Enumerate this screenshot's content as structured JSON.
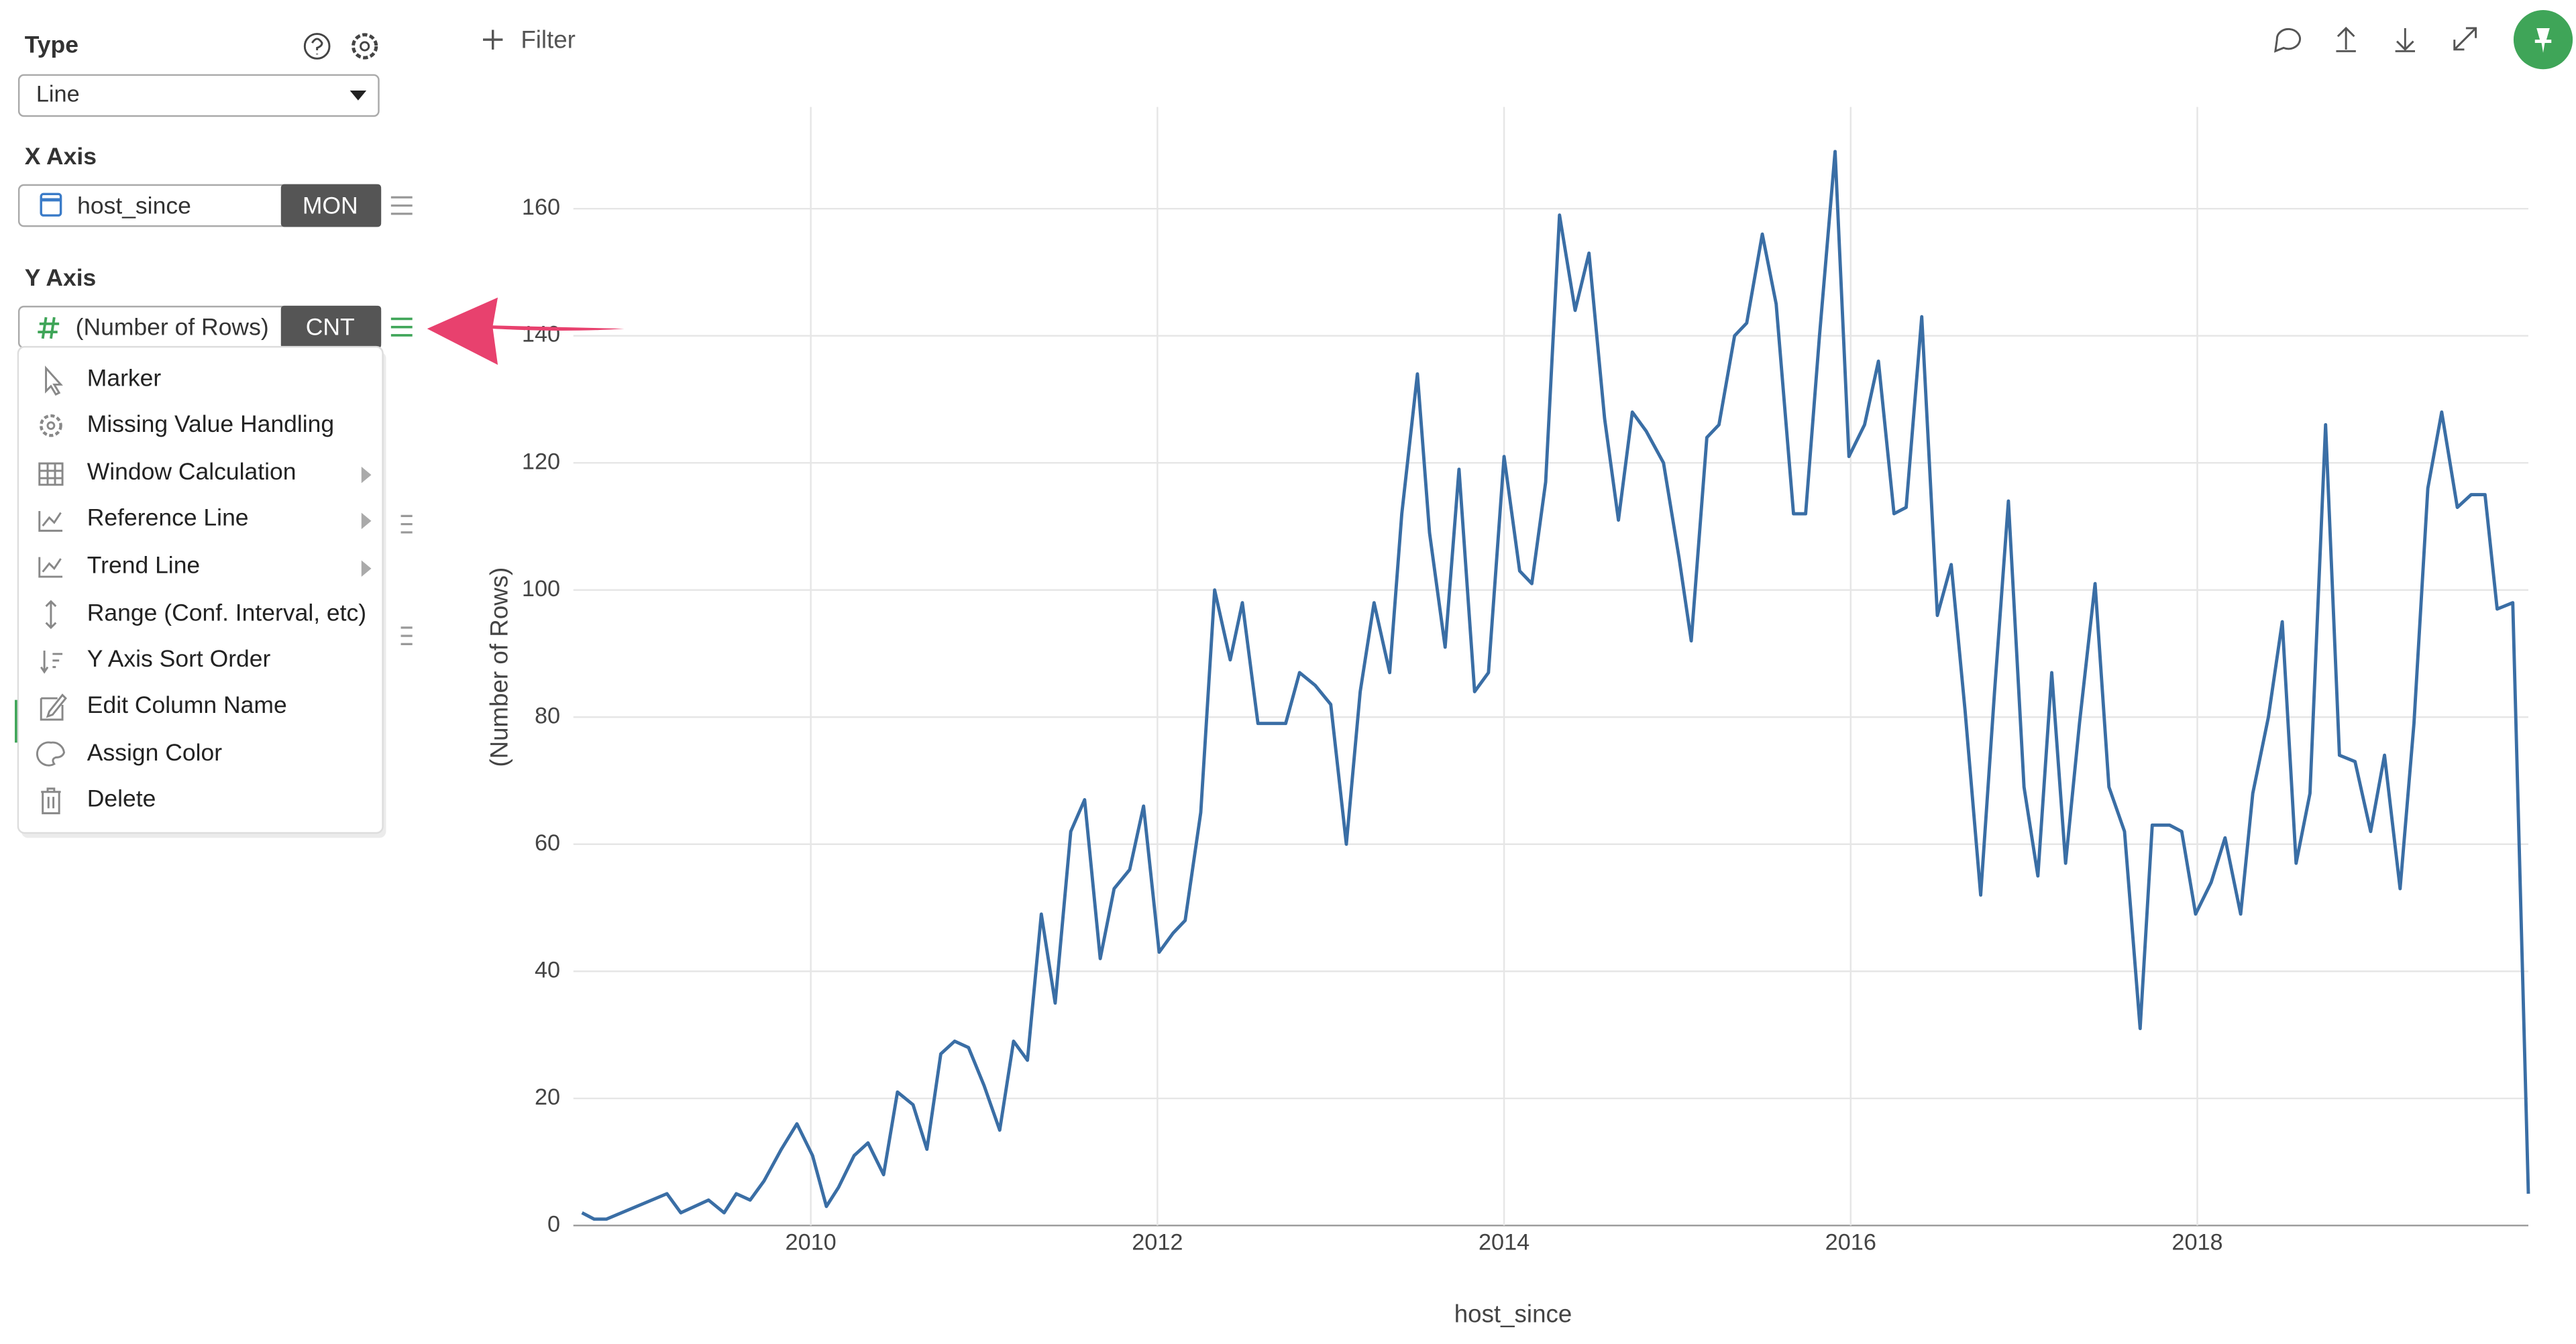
{
  "toolbar": {
    "filter": "Filter"
  },
  "sidebar": {
    "type_label": "Type",
    "type_value": "Line",
    "x_axis_label": "X Axis",
    "x_field": "host_since",
    "x_agg": "MON",
    "y_axis_label": "Y Axis",
    "y_field": "(Number of Rows)",
    "y_agg": "CNT"
  },
  "menu": {
    "items": [
      "Marker",
      "Missing Value Handling",
      "Window Calculation",
      "Reference Line",
      "Trend Line",
      "Range (Conf. Interval, etc)",
      "Y Axis Sort Order",
      "Edit Column Name",
      "Assign Color",
      "Delete"
    ]
  },
  "chart_data": {
    "type": "line",
    "x_label": "host_since",
    "y_label": "(Number of Rows)",
    "x": [
      2008.68,
      2008.75,
      2008.82,
      2009.17,
      2009.25,
      2009.41,
      2009.5,
      2009.57,
      2009.65,
      2009.73,
      2009.83,
      2009.92,
      2010.01,
      2010.09,
      2010.16,
      2010.25,
      2010.33,
      2010.42,
      2010.5,
      2010.59,
      2010.67,
      2010.75,
      2010.83,
      2010.91,
      2011.0,
      2011.09,
      2011.17,
      2011.25,
      2011.33,
      2011.41,
      2011.5,
      2011.58,
      2011.67,
      2011.75,
      2011.84,
      2011.92,
      2012.01,
      2012.09,
      2012.16,
      2012.25,
      2012.33,
      2012.42,
      2012.49,
      2012.58,
      2012.66,
      2012.74,
      2012.82,
      2012.91,
      2013.0,
      2013.09,
      2013.17,
      2013.25,
      2013.34,
      2013.41,
      2013.5,
      2013.57,
      2013.66,
      2013.74,
      2013.83,
      2013.91,
      2014.0,
      2014.09,
      2014.16,
      2014.24,
      2014.32,
      2014.41,
      2014.49,
      2014.58,
      2014.66,
      2014.74,
      2014.82,
      2014.92,
      2015.01,
      2015.08,
      2015.17,
      2015.24,
      2015.33,
      2015.4,
      2015.49,
      2015.57,
      2015.67,
      2015.74,
      2015.82,
      2015.91,
      2015.99,
      2016.08,
      2016.16,
      2016.25,
      2016.32,
      2016.41,
      2016.5,
      2016.58,
      2016.66,
      2016.75,
      2016.83,
      2016.91,
      2017.0,
      2017.08,
      2017.16,
      2017.24,
      2017.32,
      2017.41,
      2017.49,
      2017.58,
      2017.67,
      2017.74,
      2017.84,
      2017.91,
      2017.99,
      2018.08,
      2018.16,
      2018.25,
      2018.32,
      2018.41,
      2018.49,
      2018.57,
      2018.65,
      2018.74,
      2018.82,
      2018.91,
      2019.0,
      2019.08,
      2019.17,
      2019.25,
      2019.33,
      2019.41,
      2019.5,
      2019.58,
      2019.66,
      2019.73,
      2019.82,
      2019.91
    ],
    "series": [
      {
        "color": "#3a6ea5",
        "values": [
          2,
          1,
          1,
          5,
          2,
          4,
          2,
          5,
          4,
          7,
          12,
          16,
          11,
          3,
          6,
          11,
          13,
          8,
          21,
          19,
          12,
          27,
          29,
          28,
          22,
          15,
          29,
          26,
          49,
          35,
          62,
          67,
          42,
          53,
          56,
          66,
          43,
          46,
          48,
          65,
          100,
          89,
          98,
          79,
          79,
          79,
          87,
          85,
          82,
          60,
          84,
          98,
          87,
          112,
          134,
          109,
          91,
          119,
          84,
          87,
          121,
          103,
          101,
          117,
          159,
          144,
          153,
          127,
          111,
          128,
          125,
          120,
          105,
          92,
          124,
          126,
          140,
          142,
          156,
          145,
          112,
          112,
          140,
          169,
          121,
          126,
          136,
          112,
          113,
          143,
          96,
          104,
          81,
          52,
          84,
          114,
          69,
          55,
          87,
          57,
          79,
          101,
          69,
          62,
          31,
          63,
          63,
          62,
          49,
          54,
          61,
          49,
          68,
          80,
          95,
          57,
          68,
          126,
          74,
          73,
          62,
          74,
          53,
          79,
          116,
          128,
          113,
          115,
          115,
          97,
          98,
          5
        ]
      }
    ],
    "xlim": [
      2008.63,
      2019.91
    ],
    "ylim": [
      0,
      176
    ],
    "xticks": [
      2010,
      2012,
      2014,
      2016,
      2018
    ],
    "yticks": [
      0,
      20,
      40,
      60,
      80,
      100,
      120,
      140,
      160
    ],
    "grid": true
  }
}
